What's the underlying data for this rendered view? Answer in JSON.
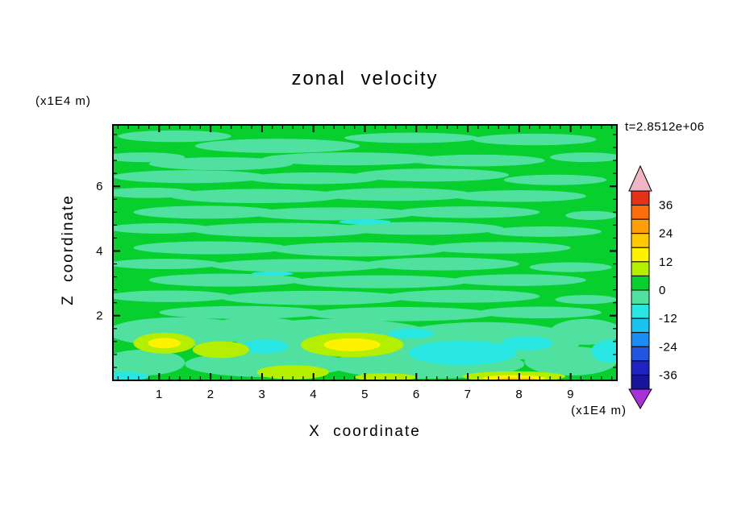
{
  "chart": {
    "title": "zonal velocity",
    "time_label": "t=2.8512e+06",
    "x_axis": {
      "label": "X coordinate",
      "unit": "(x1E4 m)"
    },
    "y_axis": {
      "label": "Z coordinate",
      "unit": "(x1E4 m)"
    }
  },
  "chart_data": {
    "type": "heatmap",
    "subtype": "filled_contour",
    "title": "zonal velocity",
    "time_annotation": "t=2.8512e+06",
    "xlabel": "X coordinate",
    "x_unit": "(x1E4 m)",
    "ylabel": "Z coordinate",
    "y_unit": "(x1E4 m)",
    "xlim": [
      0.1,
      9.9
    ],
    "ylim": [
      0,
      7.9
    ],
    "x_ticks": [
      1,
      2,
      3,
      4,
      5,
      6,
      7,
      8,
      9
    ],
    "y_ticks": [
      2,
      4,
      6
    ],
    "x_minor_step": 0.2,
    "y_minor_step": 0.4,
    "grid": false,
    "legend_position": "right-colorbar",
    "background_band": 6,
    "colorbar": {
      "tick_values": [
        36,
        24,
        12,
        0,
        -12,
        -24,
        -36
      ],
      "tick_labels": [
        "36",
        "24",
        "12",
        "0",
        "-12",
        "-24",
        "-36"
      ],
      "band_edges": [
        42,
        36,
        30,
        24,
        18,
        12,
        6,
        0,
        -6,
        -12,
        -18,
        -24,
        -30,
        -36,
        -42
      ],
      "band_colors": [
        "#e63219",
        "#fa6e0f",
        "#ffa00a",
        "#ffc805",
        "#fff200",
        "#b4ee00",
        "#06cf2e",
        "#50e1a0",
        "#28e6e1",
        "#19c3f0",
        "#1e8cf5",
        "#2355e1",
        "#1f23c3",
        "#191499"
      ],
      "over_color": "#f2b5c4",
      "under_color": "#a832d7"
    },
    "features_format": [
      "x",
      "z",
      "rx",
      "rz",
      "band_index"
    ],
    "features": [
      [
        1.3,
        7.55,
        1.1,
        0.18,
        7
      ],
      [
        3.3,
        7.25,
        1.6,
        0.22,
        7
      ],
      [
        5.9,
        7.5,
        1.3,
        0.16,
        7
      ],
      [
        8.3,
        7.45,
        1.2,
        0.18,
        7
      ],
      [
        0.7,
        6.9,
        0.8,
        0.15,
        7
      ],
      [
        2.2,
        6.7,
        1.4,
        0.2,
        7
      ],
      [
        4.7,
        6.85,
        1.7,
        0.2,
        7
      ],
      [
        7.2,
        6.8,
        1.3,
        0.18,
        7
      ],
      [
        9.3,
        6.9,
        0.7,
        0.15,
        7
      ],
      [
        1.6,
        6.3,
        1.5,
        0.2,
        7
      ],
      [
        4.0,
        6.25,
        1.3,
        0.18,
        7
      ],
      [
        6.3,
        6.35,
        1.5,
        0.2,
        7
      ],
      [
        8.7,
        6.2,
        1.0,
        0.16,
        7
      ],
      [
        0.8,
        5.8,
        0.9,
        0.16,
        7
      ],
      [
        2.9,
        5.7,
        1.7,
        0.22,
        7
      ],
      [
        5.6,
        5.75,
        1.5,
        0.2,
        7
      ],
      [
        8.0,
        5.7,
        1.3,
        0.18,
        7
      ],
      [
        1.9,
        5.2,
        1.4,
        0.2,
        7
      ],
      [
        4.4,
        5.15,
        1.6,
        0.2,
        7
      ],
      [
        7.0,
        5.2,
        1.4,
        0.18,
        7
      ],
      [
        9.4,
        5.1,
        0.5,
        0.14,
        7
      ],
      [
        1.0,
        4.7,
        1.0,
        0.16,
        7
      ],
      [
        3.4,
        4.65,
        1.8,
        0.22,
        7
      ],
      [
        6.1,
        4.7,
        1.6,
        0.2,
        7
      ],
      [
        8.5,
        4.6,
        1.1,
        0.16,
        7
      ],
      [
        2.0,
        4.1,
        1.5,
        0.2,
        7
      ],
      [
        4.9,
        4.05,
        1.7,
        0.22,
        7
      ],
      [
        7.6,
        4.1,
        1.4,
        0.18,
        7
      ],
      [
        1.1,
        3.6,
        1.1,
        0.16,
        7
      ],
      [
        3.7,
        3.55,
        1.7,
        0.2,
        7
      ],
      [
        6.5,
        3.6,
        1.5,
        0.2,
        7
      ],
      [
        9.0,
        3.5,
        0.8,
        0.15,
        7
      ],
      [
        2.3,
        3.1,
        1.5,
        0.2,
        7
      ],
      [
        5.3,
        3.05,
        1.7,
        0.2,
        7
      ],
      [
        8.0,
        3.1,
        1.3,
        0.18,
        7
      ],
      [
        1.2,
        2.6,
        1.2,
        0.18,
        7
      ],
      [
        4.0,
        2.55,
        1.8,
        0.22,
        7
      ],
      [
        6.9,
        2.6,
        1.5,
        0.2,
        7
      ],
      [
        9.3,
        2.5,
        0.6,
        0.14,
        7
      ],
      [
        2.6,
        2.1,
        1.6,
        0.2,
        7
      ],
      [
        5.7,
        2.05,
        1.8,
        0.22,
        7
      ],
      [
        8.4,
        2.1,
        1.2,
        0.18,
        7
      ],
      [
        1.4,
        1.5,
        1.4,
        0.45,
        7
      ],
      [
        4.4,
        1.35,
        2.0,
        0.55,
        7
      ],
      [
        7.3,
        1.2,
        1.9,
        0.6,
        7
      ],
      [
        9.3,
        1.5,
        0.7,
        0.4,
        7
      ],
      [
        2.9,
        1.6,
        1.0,
        0.35,
        7
      ],
      [
        0.7,
        0.55,
        0.8,
        0.4,
        7
      ],
      [
        3.1,
        0.5,
        1.6,
        0.4,
        7
      ],
      [
        6.2,
        0.5,
        1.9,
        0.45,
        7
      ],
      [
        9.0,
        0.6,
        0.9,
        0.45,
        7
      ],
      [
        5.0,
        4.9,
        0.5,
        0.08,
        8
      ],
      [
        3.2,
        3.3,
        0.4,
        0.07,
        8
      ],
      [
        3.05,
        1.05,
        0.45,
        0.22,
        8
      ],
      [
        6.9,
        0.85,
        1.05,
        0.38,
        8
      ],
      [
        8.15,
        1.15,
        0.5,
        0.22,
        8
      ],
      [
        9.75,
        0.9,
        0.35,
        0.35,
        8
      ],
      [
        0.3,
        0.12,
        0.5,
        0.14,
        8
      ],
      [
        5.9,
        1.45,
        0.45,
        0.15,
        8
      ],
      [
        1.1,
        1.15,
        0.6,
        0.32,
        5
      ],
      [
        2.2,
        0.95,
        0.55,
        0.26,
        5
      ],
      [
        4.75,
        1.1,
        1.0,
        0.38,
        5
      ],
      [
        3.6,
        0.25,
        0.7,
        0.22,
        5
      ],
      [
        7.9,
        0.12,
        1.0,
        0.16,
        5
      ],
      [
        5.4,
        0.1,
        0.6,
        0.12,
        5
      ],
      [
        1.1,
        1.15,
        0.32,
        0.16,
        4
      ],
      [
        4.75,
        1.1,
        0.55,
        0.2,
        4
      ],
      [
        7.9,
        0.07,
        0.6,
        0.09,
        4
      ],
      [
        7.95,
        0.03,
        0.4,
        0.05,
        3
      ]
    ]
  }
}
